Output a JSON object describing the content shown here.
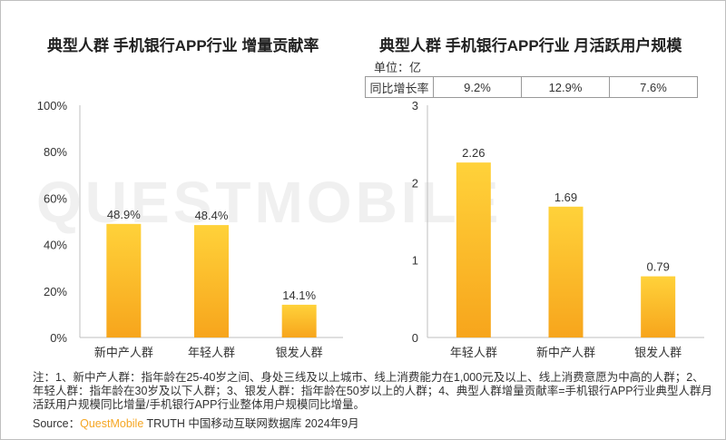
{
  "source": {
    "label": "Source：",
    "brand": "QuestMobile",
    "rest": " TRUTH 中国移动互联网数据库 2024年9月"
  },
  "note": "注：1、新中产人群：指年龄在25-40岁之间、身处三线及以上城市、线上消费能力在1,000元及以上、线上消费意愿为中高的人群；2、年轻人群：指年龄在30岁及以下人群；3、银发人群：指年龄在50岁以上的人群；4、典型人群增量贡献率=手机银行APP行业典型人群月活跃用户规模同比增量/手机银行APP行业整体用户规模同比增量。",
  "watermark": "QUESTMOBILE",
  "growth_table": {
    "header": "同比增长率",
    "values": [
      "9.2%",
      "12.9%",
      "7.6%"
    ]
  },
  "colors": {
    "bar_top": "#ffd23a",
    "bar_bottom": "#f7a51c",
    "axis": "#bfbfbf"
  },
  "chart_data": [
    {
      "type": "bar",
      "title": "典型人群 手机银行APP行业 增量贡献率",
      "categories": [
        "新中产人群",
        "年轻人群",
        "银发人群"
      ],
      "values": [
        48.9,
        48.4,
        14.1
      ],
      "labels": [
        "48.9%",
        "48.4%",
        "14.1%"
      ],
      "yticks": [
        "0%",
        "20%",
        "40%",
        "60%",
        "80%",
        "100%"
      ],
      "ylim": [
        0,
        100
      ]
    },
    {
      "type": "bar",
      "title": "典型人群 手机银行APP行业 月活跃用户规模",
      "unit": "单位：亿",
      "categories": [
        "年轻人群",
        "新中产人群",
        "银发人群"
      ],
      "values": [
        2.26,
        1.69,
        0.79
      ],
      "labels": [
        "2.26",
        "1.69",
        "0.79"
      ],
      "yticks": [
        "0",
        "1",
        "2",
        "3"
      ],
      "ylim": [
        0,
        3
      ]
    }
  ]
}
